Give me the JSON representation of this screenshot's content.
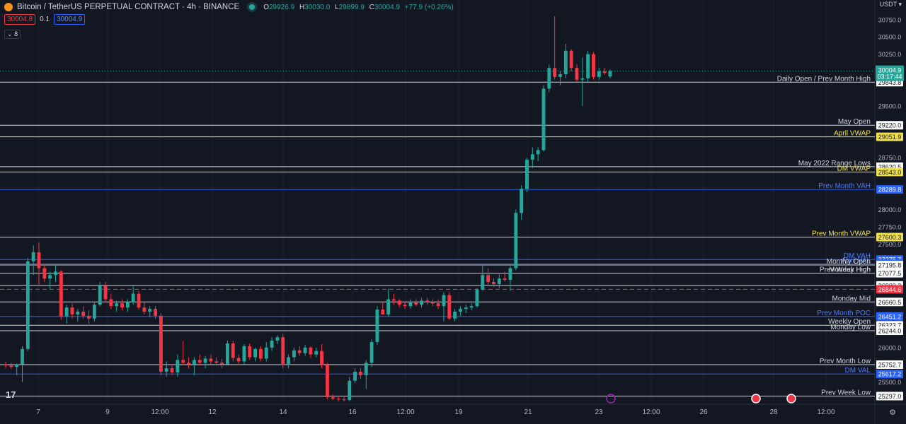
{
  "header": {
    "title": "Bitcoin / TetherUS PERPETUAL CONTRACT · 4h · BINANCE",
    "ohlc": [
      {
        "k": "O",
        "v": "29926.9"
      },
      {
        "k": "H",
        "v": "30030.0"
      },
      {
        "k": "L",
        "v": "29899.9"
      },
      {
        "k": "C",
        "v": "30004.9"
      }
    ],
    "change": "+77.9 (+0.26%)",
    "sell_price": "30004.8",
    "spread": "0.1",
    "buy_price": "30004.9",
    "indicator_count": "8",
    "currency": "USDT"
  },
  "colors": {
    "background": "#131722",
    "up": "#26a69a",
    "down": "#f23645",
    "white_level": "#d1d4dc",
    "yellow_level": "#f2e14f",
    "blue_level": "#2962ff",
    "label_blue": "#4f7cf7"
  },
  "chart_data": {
    "type": "candlestick",
    "ylim": [
      25200,
      30850
    ],
    "y_ticks": [
      30750,
      30500,
      30250,
      29500,
      28750,
      28000,
      27750,
      27500,
      26000,
      25500
    ],
    "x_ticks": [
      "7",
      "9",
      "12:00",
      "12",
      "14",
      "16",
      "12:00",
      "19",
      "21",
      "23",
      "12:00",
      "26",
      "28",
      "12:00"
    ],
    "current_price": {
      "value": "30004.9",
      "countdown": "03:17:44"
    },
    "levels": [
      {
        "label": "Daily Open / Prev Month High",
        "price": "29843.8",
        "color": "white",
        "line": "solid"
      },
      {
        "label": "May Open",
        "price": "29220.0",
        "color": "white",
        "line": "solid"
      },
      {
        "label": "April VWAP",
        "price": "29051.9",
        "color": "yellow",
        "line": "solid"
      },
      {
        "label": "May 2022 Range Lows",
        "price": "28620.5",
        "color": "white",
        "line": "solid"
      },
      {
        "label": "DM VWAP",
        "price": "28543.0",
        "color": "yellow",
        "line": "solid"
      },
      {
        "label": "Prev Month VAH",
        "price": "28289.8",
        "color": "blue",
        "line": "solid"
      },
      {
        "label": "Prev Month VWAP",
        "price": "27600.3",
        "color": "yellow",
        "line": "solid"
      },
      {
        "label": "DM VAH",
        "price": "27275.7",
        "color": "blue",
        "line": "solid"
      },
      {
        "label": "April VAL",
        "price": "27213.1",
        "color": "blue",
        "line": "solid"
      },
      {
        "label": "Monthly Open",
        "price": "27195.8",
        "color": "white",
        "line": "solid"
      },
      {
        "label": "Monday High",
        "price": "27077.5",
        "color": "white",
        "line": "solid"
      },
      {
        "label": "Prev Week High",
        "price": "",
        "color": "white",
        "line": "solid"
      },
      {
        "label": "Prev Month POC",
        "price": "",
        "color": "red",
        "line": "solid"
      },
      {
        "label": "",
        "price": "26900.2",
        "color": "white",
        "line": "solid"
      },
      {
        "label": "",
        "price": "26844.6",
        "color": "red",
        "line": "dashed"
      },
      {
        "label": "Monday Mid",
        "price": "26660.5",
        "color": "white",
        "line": "solid"
      },
      {
        "label": "Prev Month POC",
        "price": "26451.2",
        "color": "blue",
        "line": "solid"
      },
      {
        "label": "Weekly Open",
        "price": "26323.7",
        "color": "white",
        "line": "solid"
      },
      {
        "label": "Monday Low",
        "price": "26244.0",
        "color": "white",
        "line": "solid"
      },
      {
        "label": "Prev Month Low",
        "price": "25752.7",
        "color": "white",
        "line": "solid"
      },
      {
        "label": "DM VAL",
        "price": "25617.2",
        "color": "blue",
        "line": "solid"
      },
      {
        "label": "Prev Week Low",
        "price": "25297.0",
        "color": "white",
        "line": "solid"
      }
    ],
    "candles": [
      [
        25760,
        25800,
        25700,
        25740
      ],
      [
        25740,
        25780,
        25690,
        25720
      ],
      [
        25720,
        25770,
        25600,
        25760
      ],
      [
        25760,
        26020,
        25500,
        25980
      ],
      [
        25980,
        27300,
        25950,
        27250
      ],
      [
        27250,
        27480,
        27050,
        27380
      ],
      [
        27380,
        27520,
        26900,
        27150
      ],
      [
        27150,
        27200,
        26950,
        27000
      ],
      [
        27000,
        27100,
        26850,
        27050
      ],
      [
        27050,
        27200,
        26950,
        27100
      ],
      [
        27100,
        27120,
        26400,
        26450
      ],
      [
        26450,
        26620,
        26350,
        26580
      ],
      [
        26580,
        26640,
        26420,
        26480
      ],
      [
        26480,
        26560,
        26380,
        26520
      ],
      [
        26520,
        26600,
        26420,
        26460
      ],
      [
        26460,
        26540,
        26350,
        26420
      ],
      [
        26420,
        26650,
        26380,
        26620
      ],
      [
        26620,
        26950,
        26600,
        26900
      ],
      [
        26900,
        26950,
        26650,
        26700
      ],
      [
        26700,
        26780,
        26560,
        26600
      ],
      [
        26600,
        26680,
        26520,
        26640
      ],
      [
        26640,
        26700,
        26540,
        26580
      ],
      [
        26580,
        26700,
        26520,
        26660
      ],
      [
        26660,
        26900,
        26620,
        26780
      ],
      [
        26780,
        26820,
        26550,
        26580
      ],
      [
        26580,
        26650,
        26480,
        26520
      ],
      [
        26520,
        26600,
        26440,
        26560
      ],
      [
        26560,
        26600,
        26420,
        26460
      ],
      [
        26460,
        26500,
        25600,
        25650
      ],
      [
        25650,
        25800,
        25580,
        25700
      ],
      [
        25700,
        25760,
        25600,
        25640
      ],
      [
        25640,
        25900,
        25580,
        25820
      ],
      [
        25820,
        26100,
        25750,
        25780
      ],
      [
        25780,
        25860,
        25700,
        25760
      ],
      [
        25760,
        25860,
        25600,
        25820
      ],
      [
        25820,
        25900,
        25740,
        25780
      ],
      [
        25780,
        25880,
        25700,
        25840
      ],
      [
        25840,
        25900,
        25760,
        25800
      ],
      [
        25800,
        25860,
        25740,
        25780
      ],
      [
        25780,
        25840,
        25700,
        25760
      ],
      [
        25760,
        26100,
        25740,
        26060
      ],
      [
        26060,
        26100,
        25800,
        25850
      ],
      [
        25850,
        25900,
        25750,
        25800
      ],
      [
        25800,
        26050,
        25760,
        26020
      ],
      [
        26020,
        26060,
        25820,
        25860
      ],
      [
        25860,
        26000,
        25800,
        25980
      ],
      [
        25980,
        26020,
        25800,
        25840
      ],
      [
        25840,
        26080,
        25800,
        26000
      ],
      [
        26000,
        26150,
        25950,
        26100
      ],
      [
        26100,
        26180,
        26050,
        26150
      ],
      [
        26150,
        26200,
        25700,
        25750
      ],
      [
        25750,
        25900,
        25700,
        25860
      ],
      [
        25860,
        26000,
        25800,
        25960
      ],
      [
        25960,
        26020,
        25880,
        25920
      ],
      [
        25920,
        26040,
        25880,
        26000
      ],
      [
        26000,
        26020,
        25850,
        25900
      ],
      [
        25900,
        26000,
        25860,
        25950
      ],
      [
        25950,
        26050,
        25700,
        25750
      ],
      [
        25750,
        25780,
        25250,
        25280
      ],
      [
        25280,
        25320,
        25240,
        25260
      ],
      [
        25260,
        25300,
        25220,
        25250
      ],
      [
        25250,
        25300,
        25220,
        25240
      ],
      [
        25240,
        25580,
        25220,
        25520
      ],
      [
        25520,
        25700,
        25480,
        25650
      ],
      [
        25650,
        25700,
        25550,
        25600
      ],
      [
        25600,
        25820,
        25400,
        25780
      ],
      [
        25780,
        26120,
        25720,
        26080
      ],
      [
        26080,
        26600,
        26040,
        26550
      ],
      [
        26550,
        26650,
        26500,
        26480
      ],
      [
        26480,
        26850,
        26450,
        26700
      ],
      [
        26700,
        26780,
        26620,
        26680
      ],
      [
        26680,
        26700,
        26580,
        26620
      ],
      [
        26620,
        26660,
        26560,
        26600
      ],
      [
        26600,
        26700,
        26560,
        26650
      ],
      [
        26650,
        26700,
        26600,
        26620
      ],
      [
        26620,
        26720,
        26580,
        26680
      ],
      [
        26680,
        26720,
        26620,
        26660
      ],
      [
        26660,
        26700,
        26600,
        26640
      ],
      [
        26640,
        26700,
        26560,
        26600
      ],
      [
        26600,
        26800,
        26380,
        26760
      ],
      [
        26760,
        26800,
        26400,
        26420
      ],
      [
        26420,
        26560,
        26380,
        26520
      ],
      [
        26520,
        26600,
        26460,
        26560
      ],
      [
        26560,
        26620,
        26500,
        26580
      ],
      [
        26580,
        26640,
        26540,
        26600
      ],
      [
        26600,
        26860,
        26580,
        26840
      ],
      [
        26840,
        27200,
        26820,
        27050
      ],
      [
        27050,
        27150,
        26900,
        26950
      ],
      [
        26950,
        27000,
        26880,
        26920
      ],
      [
        26920,
        27060,
        26860,
        27000
      ],
      [
        27000,
        27100,
        26960,
        26980
      ],
      [
        26980,
        27180,
        26820,
        27150
      ],
      [
        27150,
        28000,
        27120,
        27950
      ],
      [
        27950,
        28350,
        27850,
        28300
      ],
      [
        28300,
        28750,
        28250,
        28720
      ],
      [
        28720,
        28900,
        28600,
        28800
      ],
      [
        28800,
        28900,
        28700,
        28860
      ],
      [
        28860,
        29800,
        28840,
        29750
      ],
      [
        29750,
        30100,
        29700,
        30050
      ],
      [
        30050,
        30800,
        29880,
        29920
      ],
      [
        29920,
        30000,
        29800,
        29960
      ],
      [
        29960,
        30400,
        29900,
        30300
      ],
      [
        30300,
        30320,
        30000,
        30050
      ],
      [
        30050,
        30100,
        29850,
        29880
      ],
      [
        29880,
        30200,
        29500,
        29900
      ],
      [
        29900,
        30300,
        29850,
        30250
      ],
      [
        30250,
        30280,
        29880,
        29920
      ],
      [
        29920,
        30050,
        29880,
        30000
      ],
      [
        30000,
        30050,
        29950,
        29980
      ],
      [
        29926.9,
        30030,
        29899.9,
        30004.9
      ]
    ]
  }
}
